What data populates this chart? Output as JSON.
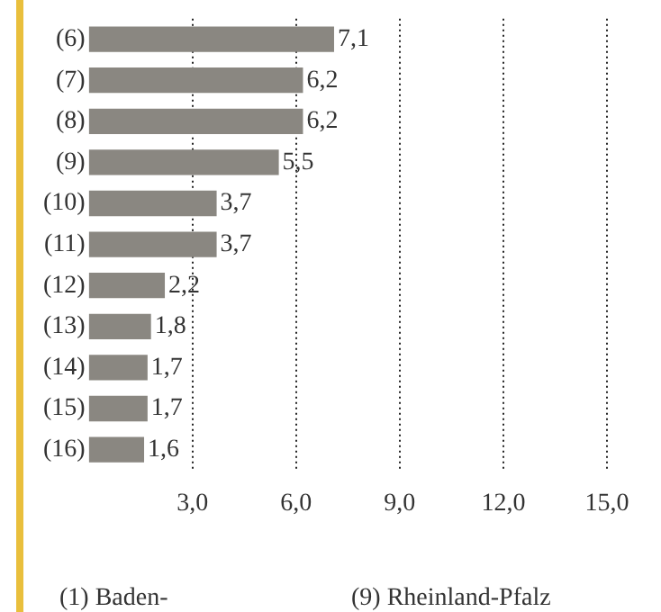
{
  "chart_data": {
    "type": "bar",
    "orientation": "horizontal",
    "categories": [
      "(6)",
      "(7)",
      "(8)",
      "(9)",
      "(10)",
      "(11)",
      "(12)",
      "(13)",
      "(14)",
      "(15)",
      "(16)"
    ],
    "values": [
      7.1,
      6.2,
      6.2,
      5.5,
      3.7,
      3.7,
      2.2,
      1.8,
      1.7,
      1.7,
      1.6
    ],
    "value_labels": [
      "7,1",
      "6,2",
      "6,2",
      "5,5",
      "3,7",
      "3,7",
      "2,2",
      "1,8",
      "1,7",
      "1,7",
      "1,6"
    ],
    "color": "#8a8781",
    "xlim": [
      0,
      15
    ],
    "xticks": [
      {
        "value": 3,
        "label": "3,0"
      },
      {
        "value": 6,
        "label": "6,0"
      },
      {
        "value": 9,
        "label": "9,0"
      },
      {
        "value": 12,
        "label": "12,0"
      },
      {
        "value": 15,
        "label": "15,0"
      }
    ],
    "grid": "x",
    "annotations": [
      "(1) Baden-",
      "(9) Rheinland-Pfalz"
    ]
  }
}
